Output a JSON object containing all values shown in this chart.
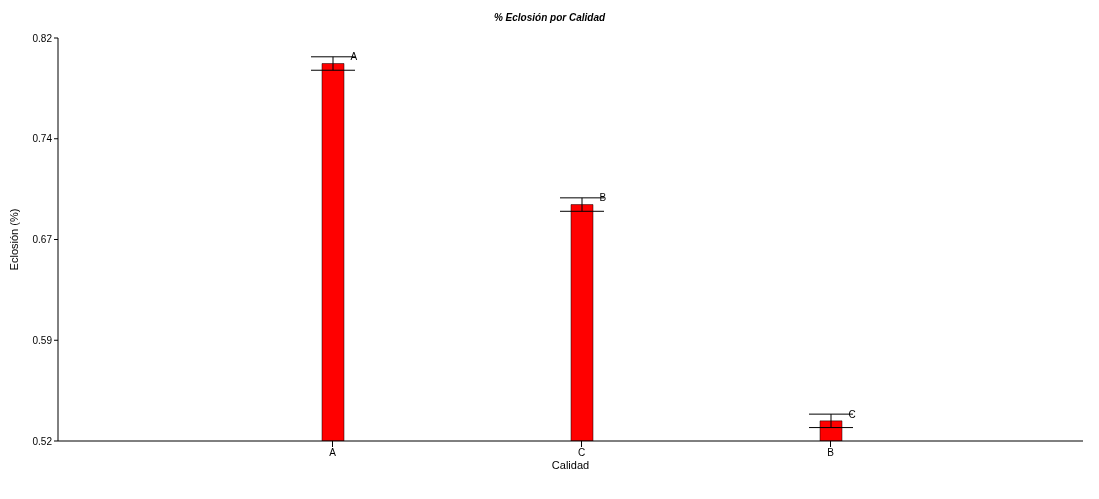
{
  "chart_data": {
    "type": "bar",
    "title": "% Eclosión por Calidad",
    "xlabel": "Calidad",
    "ylabel": "Eclosión (%)",
    "categories": [
      "A",
      "C",
      "B"
    ],
    "series": [
      {
        "color": "#ff0000",
        "values": [
          0.801,
          0.696,
          0.535
        ],
        "errors": [
          0.005,
          0.005,
          0.005
        ]
      }
    ],
    "ylim": [
      0.52,
      0.82
    ],
    "yticks": [
      {
        "value": 0.52,
        "label": "0.52"
      },
      {
        "value": 0.595,
        "label": "0.59"
      },
      {
        "value": 0.67,
        "label": "0.67"
      },
      {
        "value": 0.745,
        "label": "0.74"
      },
      {
        "value": 0.82,
        "label": "0.82"
      }
    ],
    "annotations": [
      {
        "text": "A",
        "x": "A",
        "y": 0.806
      },
      {
        "text": "B",
        "x": "C",
        "y": 0.701
      },
      {
        "text": "C",
        "x": "B",
        "y": 0.54
      }
    ],
    "grid": false,
    "legend": false
  }
}
